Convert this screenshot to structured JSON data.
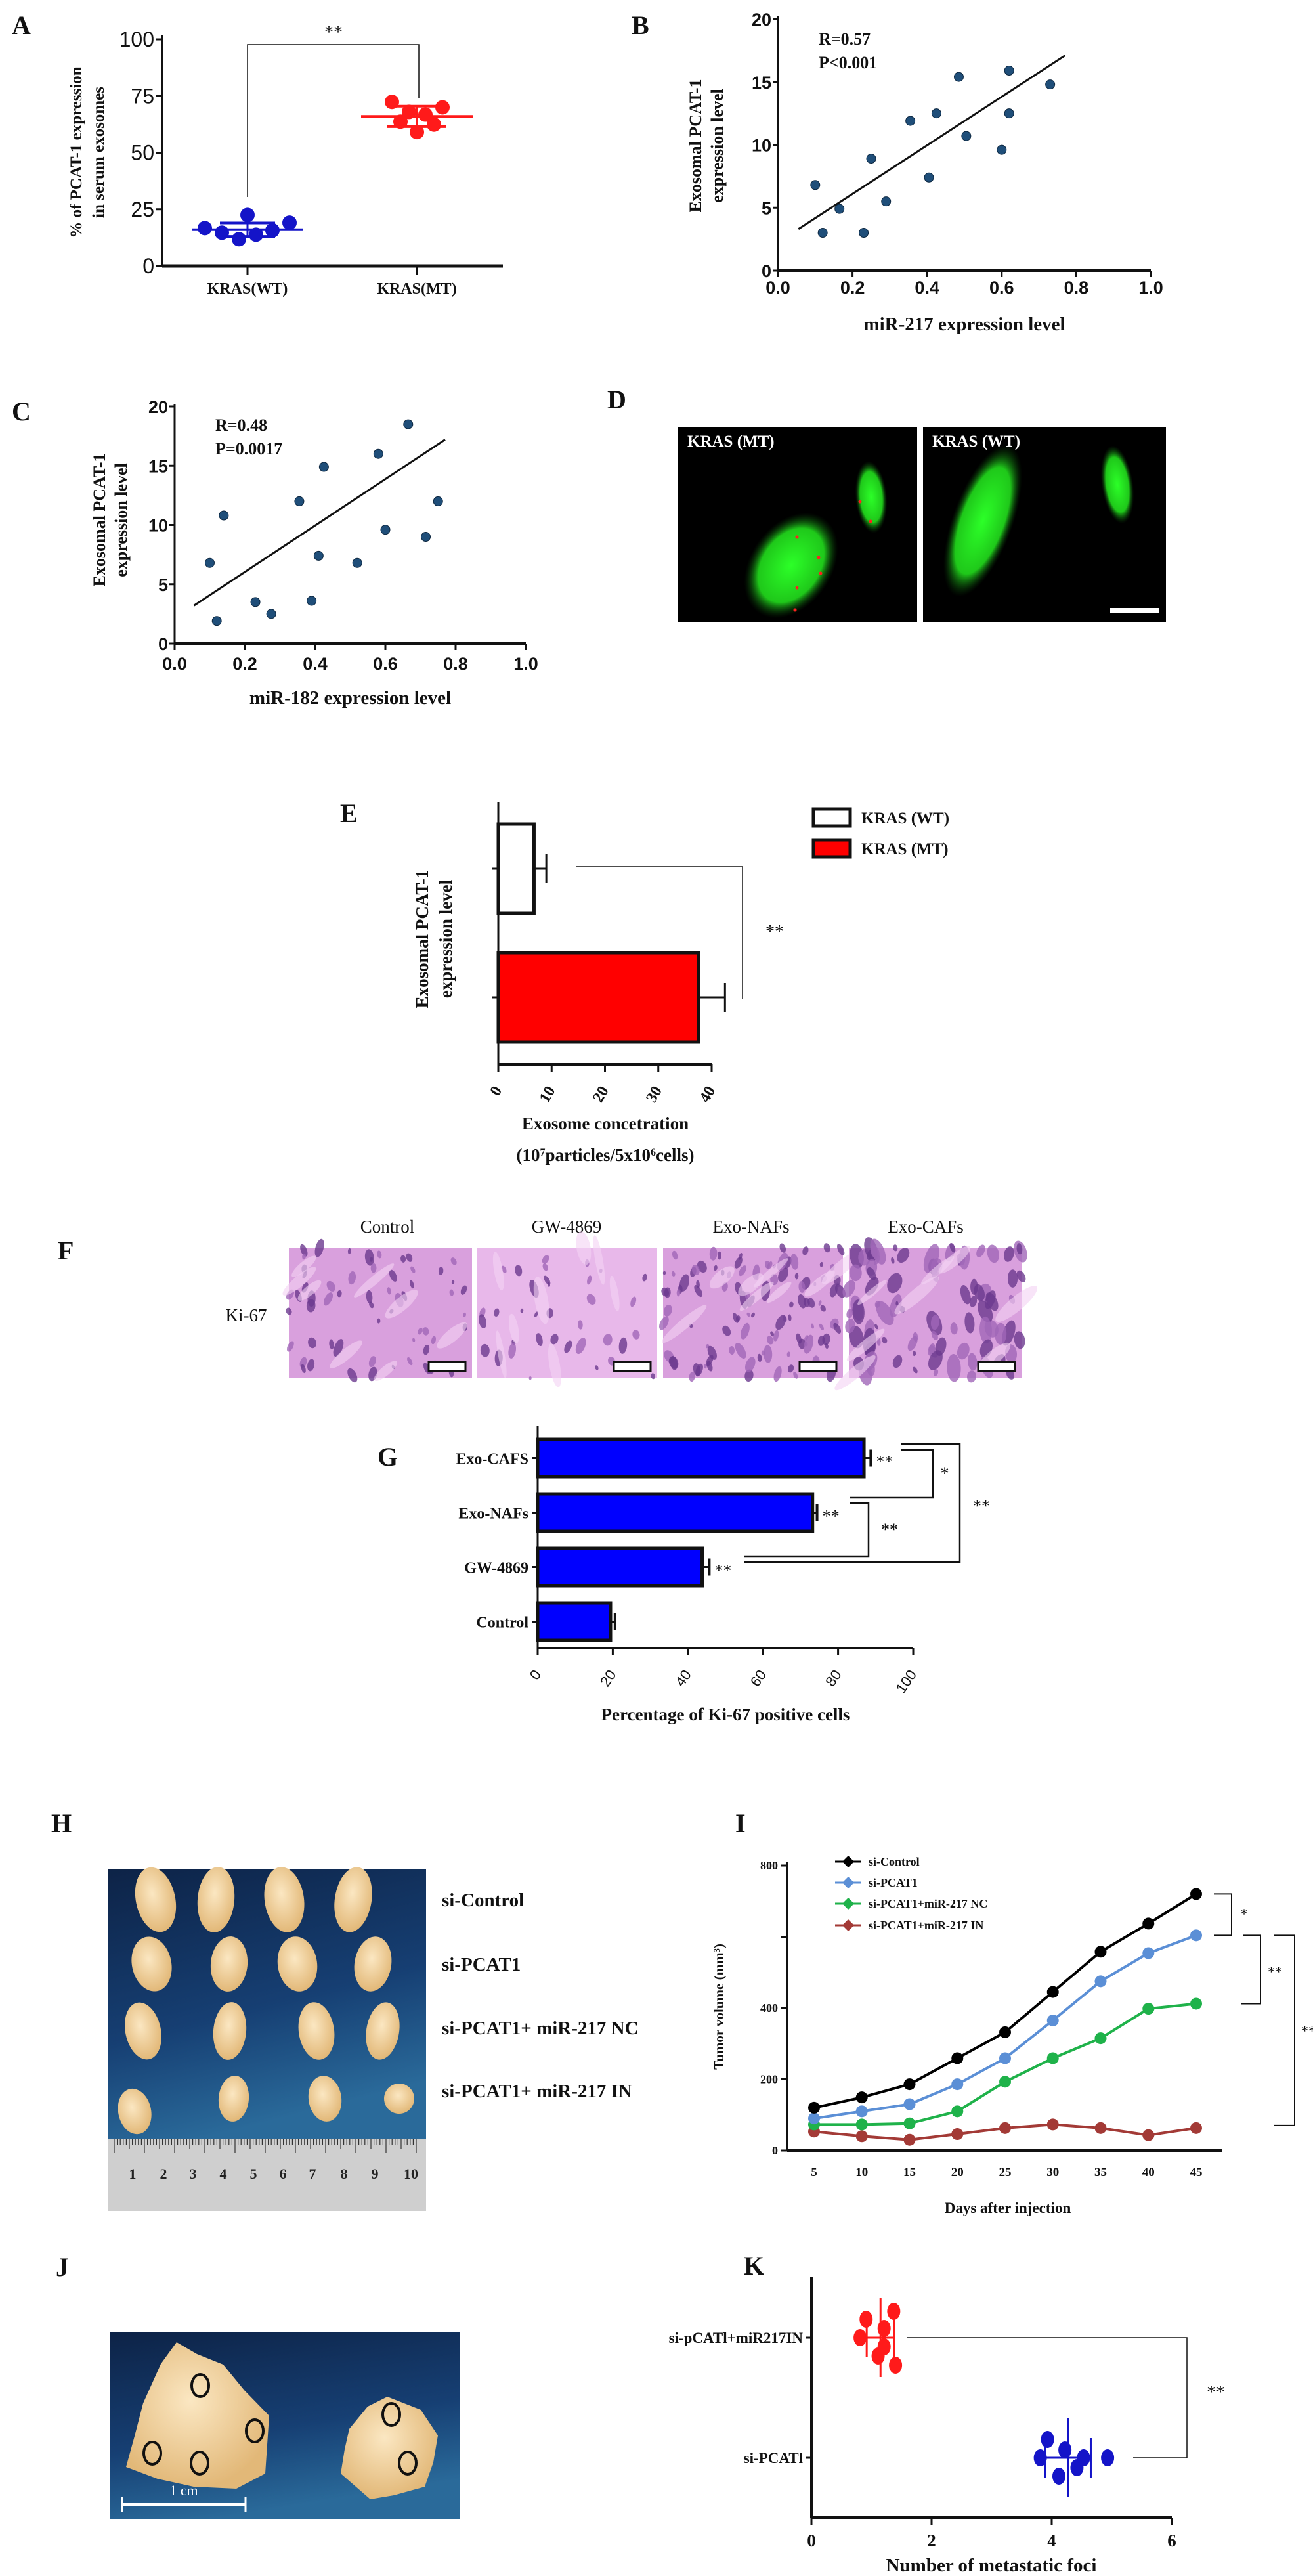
{
  "panel_labels": [
    "A",
    "B",
    "C",
    "D",
    "E",
    "F",
    "G",
    "H",
    "I",
    "J",
    "K"
  ],
  "panel_d": {
    "images": [
      {
        "label": "KRAS (MT)"
      },
      {
        "label": "KRAS (WT)"
      }
    ],
    "colors": {
      "background": "#000000",
      "cells": "#22e01e",
      "dots": "#ff2020"
    }
  },
  "panel_f": {
    "columns": [
      "Control",
      "GW-4869",
      "Exo-NAFs",
      "Exo-CAFs"
    ],
    "row_label": "Ki-67"
  },
  "panel_h": {
    "groups": [
      "si-Control",
      "si-PCAT1",
      "si-PCAT1+ miR-217 NC",
      "si-PCAT1+ miR-217 IN"
    ],
    "ruler_labels": [
      "1",
      "2",
      "3",
      "4",
      "5",
      "6",
      "7",
      "8",
      "9",
      "10"
    ]
  },
  "panel_j": {
    "scale_bar": "1 cm"
  },
  "chart_data": [
    {
      "panel": "A",
      "type": "scatter",
      "categories": [
        "KRAS(WT)",
        "KRAS(MT)"
      ],
      "ylabel_lines": [
        "% of PCAT-1 expression",
        "in serum exosomes"
      ],
      "ylim": [
        0,
        100
      ],
      "yticks": [
        0,
        25,
        50,
        75,
        100
      ],
      "series": [
        {
          "values": [
            16.7,
            14.7,
            11.8,
            22.5,
            13.8,
            15.7,
            19.1
          ],
          "mean": 16,
          "sd": 3,
          "color": "#1414c8"
        },
        {
          "values": [
            72.4,
            63.7,
            68.0,
            59.1,
            66.8,
            62.4,
            70.0
          ],
          "mean": 66,
          "sd": 4.5,
          "color": "#ff1a1a"
        }
      ],
      "significance": "**",
      "grid": false
    },
    {
      "panel": "B",
      "type": "scatter",
      "x": [
        0.1,
        0.12,
        0.165,
        0.23,
        0.25,
        0.29,
        0.355,
        0.405,
        0.425,
        0.485,
        0.505,
        0.6,
        0.62,
        0.62,
        0.73
      ],
      "y": [
        6.8,
        3.0,
        4.9,
        3.0,
        8.9,
        5.5,
        11.9,
        7.4,
        12.5,
        15.4,
        10.7,
        9.6,
        12.5,
        15.9,
        14.8
      ],
      "fit_line": {
        "x": [
          0.055,
          0.77
        ],
        "y": [
          3.3,
          17.1
        ]
      },
      "annotations": [
        "R=0.57",
        "P<0.001"
      ],
      "xlabel": "miR-217 expression level",
      "ylabel_lines": [
        "Exosomal PCAT-1",
        "expression level"
      ],
      "xlim": [
        0,
        1.0
      ],
      "ylim": [
        0,
        20
      ],
      "xticks": [
        "0.0",
        "0.2",
        "0.4",
        "0.6",
        "0.8",
        "1.0"
      ],
      "yticks": [
        0,
        5,
        10,
        15,
        20
      ],
      "color": "#1f4e79",
      "grid": false
    },
    {
      "panel": "C",
      "type": "scatter",
      "x": [
        0.1,
        0.12,
        0.14,
        0.23,
        0.275,
        0.355,
        0.39,
        0.41,
        0.425,
        0.52,
        0.58,
        0.6,
        0.665,
        0.715,
        0.75
      ],
      "y": [
        6.8,
        1.9,
        10.8,
        3.5,
        2.5,
        12.0,
        3.6,
        7.4,
        14.9,
        6.8,
        16.0,
        9.6,
        18.5,
        9.0,
        12.0
      ],
      "fit_line": {
        "x": [
          0.055,
          0.77
        ],
        "y": [
          3.2,
          17.2
        ]
      },
      "annotations": [
        "R=0.48",
        "P=0.0017"
      ],
      "xlabel": "miR-182 expression level",
      "ylabel_lines": [
        "Exosomal PCAT-1",
        "expression level"
      ],
      "xlim": [
        0,
        1.0
      ],
      "ylim": [
        0,
        20
      ],
      "xticks": [
        "0.0",
        "0.2",
        "0.4",
        "0.6",
        "0.8",
        "1.0"
      ],
      "yticks": [
        0,
        5,
        10,
        15,
        20
      ],
      "color": "#1f4e79",
      "grid": false
    },
    {
      "panel": "E",
      "type": "bar",
      "orientation": "horizontal",
      "categories": [
        "KRAS (WT)",
        "KRAS (MT)"
      ],
      "values": [
        6.7,
        37.6
      ],
      "errors": [
        2.3,
        4.9
      ],
      "colors": [
        "#ffffff",
        "#ff0000"
      ],
      "legend": [
        "KRAS (WT)",
        "KRAS (MT)"
      ],
      "legend_position": "top-right",
      "xlabel_line1": "Exosome concetration",
      "xlabel_line2_parts": [
        "(10",
        "7",
        "particles/5x10",
        "6",
        "cells)"
      ],
      "ylabel_lines": [
        "Exosomal PCAT-1",
        "expression level"
      ],
      "xlim": [
        0,
        40
      ],
      "xticks": [
        0,
        10,
        20,
        30,
        40
      ],
      "significance": "**",
      "grid": false
    },
    {
      "panel": "G",
      "type": "bar",
      "orientation": "horizontal",
      "categories": [
        "Exo-CAFS",
        "Exo-NAFs",
        "GW-4869",
        "Control"
      ],
      "values": [
        86.9,
        73.2,
        43.8,
        19.4
      ],
      "errors": [
        1.8,
        1.2,
        1.9,
        1.2
      ],
      "bar_labels": [
        "**",
        "**",
        "**",
        ""
      ],
      "comparisons": [
        {
          "pair": [
            "Exo-CAFS",
            "Exo-NAFs"
          ],
          "label": "*"
        },
        {
          "pair": [
            "Exo-NAFs",
            "GW-4869"
          ],
          "label": "**"
        },
        {
          "pair": [
            "Exo-CAFS",
            "GW-4869"
          ],
          "label": "**"
        }
      ],
      "xlabel": "Percentage of Ki-67 positive cells",
      "xlim": [
        0,
        100
      ],
      "xticks": [
        0,
        20,
        40,
        60,
        80,
        100
      ],
      "color": "#0000ff",
      "grid": false
    },
    {
      "panel": "I",
      "type": "line",
      "x": [
        5,
        10,
        15,
        20,
        25,
        30,
        35,
        40,
        45
      ],
      "series": [
        {
          "name": "si-Control",
          "color": "#000000",
          "values": [
            120,
            149,
            186,
            259,
            332,
            445,
            558,
            637,
            720
          ]
        },
        {
          "name": "si-PCAT1",
          "color": "#5b8fd6",
          "values": [
            90,
            110,
            130,
            186,
            259,
            365,
            475,
            554,
            604
          ]
        },
        {
          "name": "si-PCAT1+miR-217 NC",
          "color": "#1fb24a",
          "values": [
            73,
            73,
            76,
            110,
            193,
            259,
            315,
            398,
            412
          ]
        },
        {
          "name": "si-PCAT1+miR-217 IN",
          "color": "#a33a36",
          "values": [
            53,
            40,
            30,
            46,
            63,
            73,
            63,
            43,
            63
          ]
        }
      ],
      "xlabel": "Days after injection",
      "ylabel": "Tumor volume (mm³)",
      "xlim": [
        5,
        45
      ],
      "ylim": [
        0,
        800
      ],
      "xticks": [
        5,
        10,
        15,
        20,
        25,
        30,
        35,
        40,
        45
      ],
      "yticks_labeled": [
        0,
        200,
        400,
        800
      ],
      "comparisons": [
        {
          "pair": [
            "si-Control",
            "si-PCAT1"
          ],
          "label": "*"
        },
        {
          "pair": [
            "si-PCAT1",
            "si-PCAT1+miR-217 NC"
          ],
          "label": "**"
        },
        {
          "pair": [
            "si-PCAT1",
            "si-PCAT1+miR-217 IN"
          ],
          "label": "**"
        }
      ],
      "legend_position": "top-left",
      "grid": false
    },
    {
      "panel": "K",
      "type": "scatter",
      "orientation": "horizontal",
      "categories": [
        "si-pCATl+miR217IN",
        "si-PCATl"
      ],
      "series": [
        {
          "values": [
            0.81,
            0.91,
            1.21,
            1.21,
            1.11,
            1.37,
            1.4
          ],
          "mean": 1.15,
          "sd": 0.23,
          "color": "#ff1a1a"
        },
        {
          "values": [
            3.81,
            3.93,
            4.22,
            4.42,
            4.53,
            4.93,
            4.12
          ],
          "mean": 4.27,
          "sd": 0.38,
          "color": "#1414c8"
        }
      ],
      "xlabel": "Number of metastatic foci",
      "xlim": [
        0,
        6
      ],
      "xticks": [
        0,
        2,
        4,
        6
      ],
      "significance": "**",
      "grid": false
    }
  ]
}
